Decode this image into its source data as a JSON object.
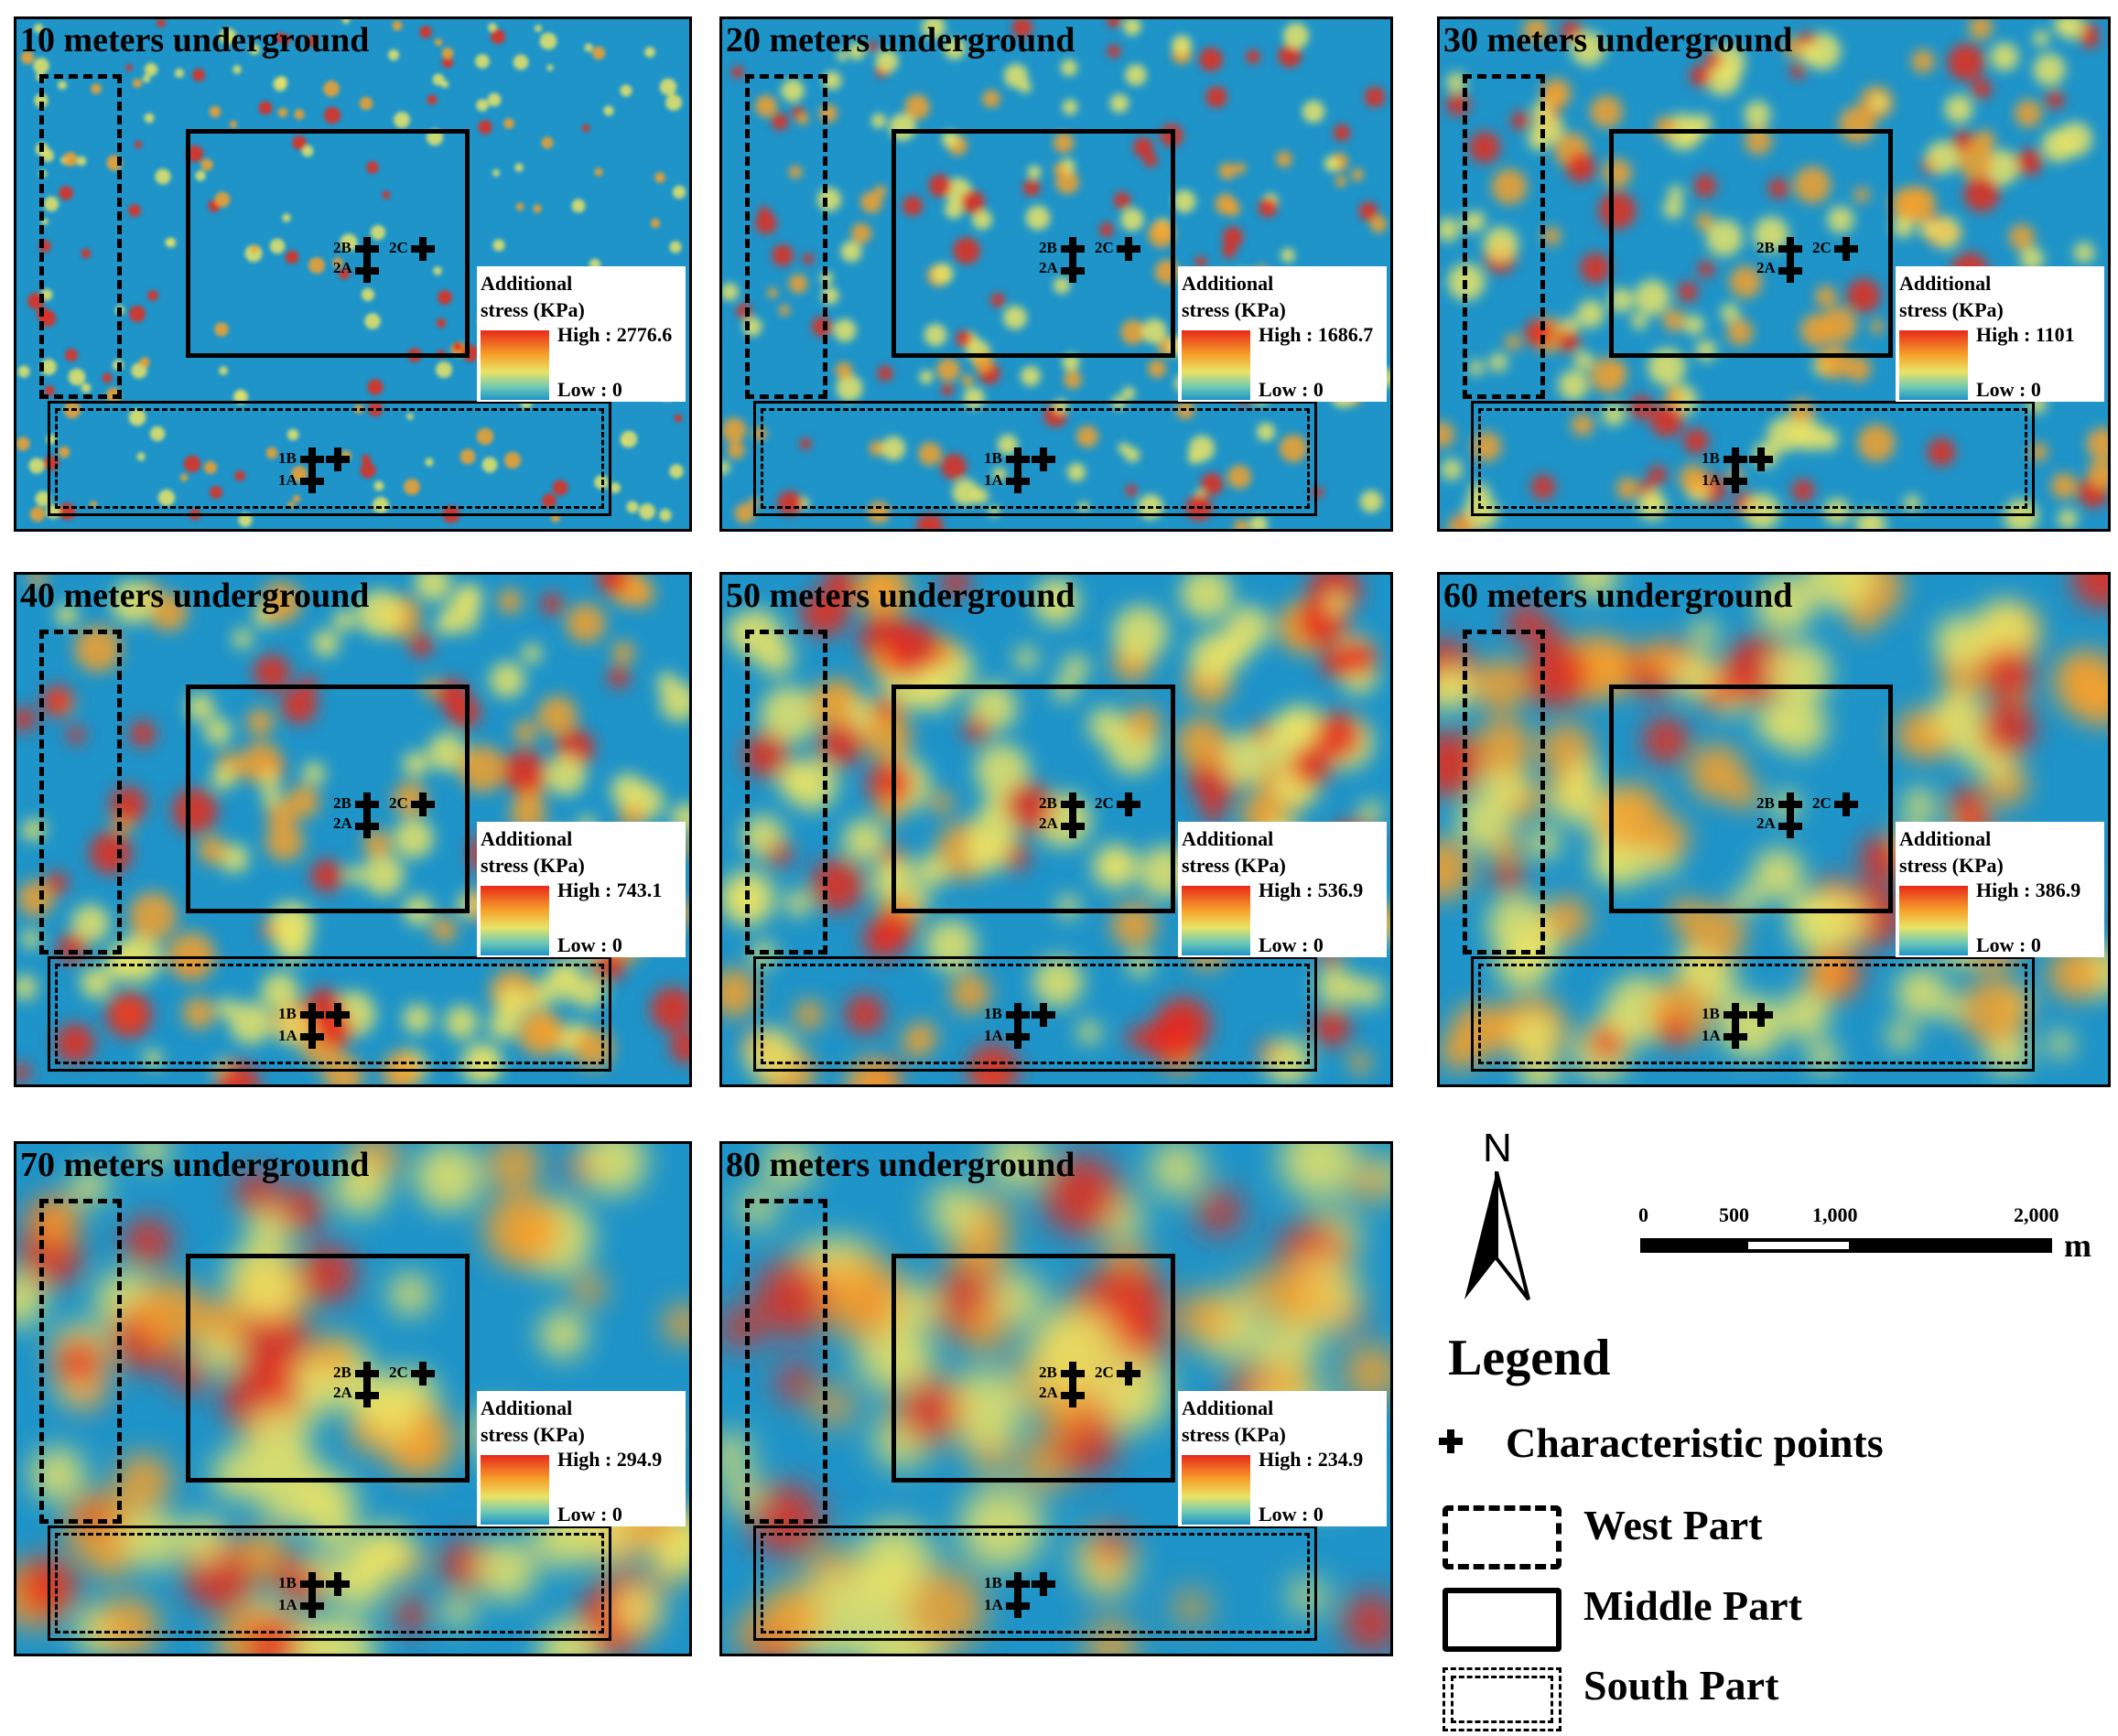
{
  "panels": [
    {
      "title": "10 meters underground",
      "legend_title": "Additional stress (KPa)",
      "high": "High : 2776.6",
      "low": "Low : 0"
    },
    {
      "title": "20 meters underground",
      "legend_title": "Additional stress (KPa)",
      "high": "High : 1686.7",
      "low": "Low : 0"
    },
    {
      "title": "30 meters underground",
      "legend_title": "Additional stress (KPa)",
      "high": "High : 1101",
      "low": "Low : 0"
    },
    {
      "title": "40 meters underground",
      "legend_title": "Additional stress (KPa)",
      "high": "High : 743.1",
      "low": "Low : 0"
    },
    {
      "title": "50 meters underground",
      "legend_title": "Additional stress (KPa)",
      "high": "High : 536.9",
      "low": "Low : 0"
    },
    {
      "title": "60 meters underground",
      "legend_title": "Additional stress (KPa)",
      "high": "High : 386.9",
      "low": "Low : 0"
    },
    {
      "title": "70 meters underground",
      "legend_title": "Additional stress (KPa)",
      "high": "High : 294.9",
      "low": "Low : 0"
    },
    {
      "title": "80 meters underground",
      "legend_title": "Additional stress (KPa)",
      "high": "High : 234.9",
      "low": "Low : 0"
    }
  ],
  "points": {
    "p2B": "2B",
    "p2C": "2C",
    "p2A": "2A",
    "p1B": "1B",
    "p1A": "1A"
  },
  "north": "N",
  "scale": {
    "t0": "0",
    "t1": "500",
    "t2": "1,000",
    "t3": "2,000",
    "unit": "m"
  },
  "legend": {
    "title": "Legend",
    "characteristic": "Characteristic points",
    "west": "West Part",
    "middle": "Middle Part",
    "south": "South Part"
  },
  "colors": {
    "low": "#1e94c9",
    "mid": "#e9e466",
    "high": "#e8281a"
  }
}
